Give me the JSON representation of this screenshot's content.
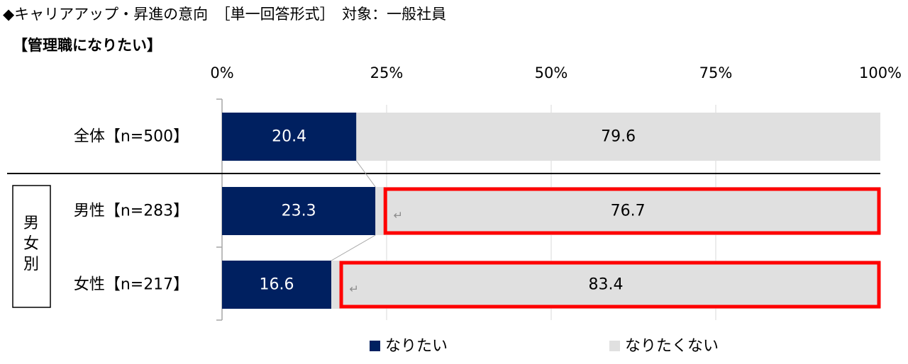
{
  "header": {
    "title": "◆キャリアアップ・昇進の意向　［単一回答形式］　対象：一般社員",
    "subtitle": "【管理職になりたい】"
  },
  "group_label": "男女別",
  "chart_data": {
    "type": "bar",
    "orientation": "horizontal",
    "stacked": true,
    "percent_scale": true,
    "x_ticks": [
      "0%",
      "25%",
      "50%",
      "75%",
      "100%"
    ],
    "xlim": [
      0,
      100
    ],
    "categories": [
      "全体【n=500】",
      "男性【n=283】",
      "女性【n=217】"
    ],
    "series": [
      {
        "name": "なりたい",
        "values": [
          20.4,
          23.3,
          16.6
        ],
        "color": "#002060"
      },
      {
        "name": "なりたくない",
        "values": [
          79.6,
          76.7,
          83.4
        ],
        "color": "#e0e0e0"
      }
    ],
    "highlighted": [
      {
        "category": "男性【n=283】",
        "series": "なりたくない"
      },
      {
        "category": "女性【n=217】",
        "series": "なりたくない"
      }
    ],
    "highlight_color": "#ff0000",
    "return_mark": "↵",
    "legend_position": "bottom"
  }
}
